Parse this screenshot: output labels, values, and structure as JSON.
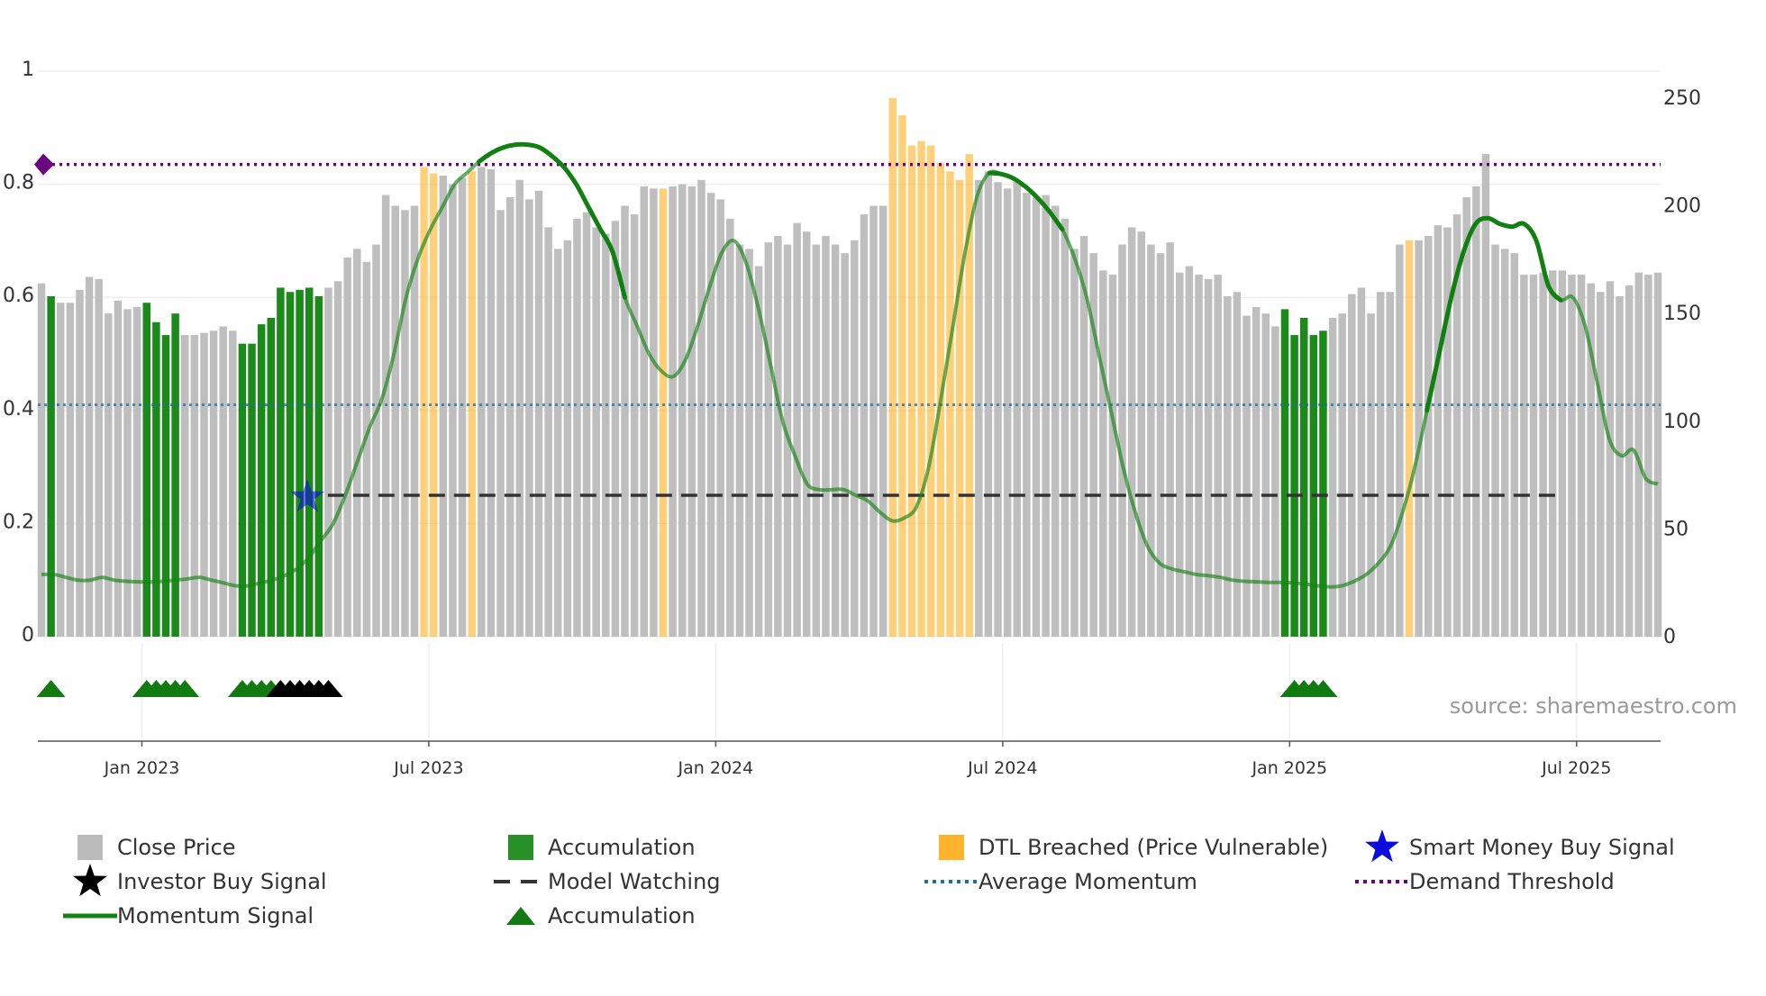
{
  "chart_data": {
    "type": "bar",
    "title": "",
    "source": "source: sharemaestro.com",
    "x_tick_labels": [
      "Jan 2023",
      "Jul 2023",
      "Jan 2024",
      "Jul 2024",
      "Jan 2025",
      "Jul 2025"
    ],
    "left_axis": {
      "ylim": [
        0,
        1
      ],
      "ticks": [
        0,
        0.2,
        0.4,
        0.6,
        0.8,
        1
      ],
      "tick_labels": [
        "0",
        "0.2",
        "0.4",
        "0.6",
        "0.8",
        "1"
      ]
    },
    "right_axis": {
      "ylim": [
        0,
        262.5
      ],
      "ticks": [
        0,
        50,
        100,
        150,
        200,
        250
      ],
      "tick_labels": [
        "0",
        "50",
        "100",
        "150",
        "200",
        "250"
      ]
    },
    "price": [
      164,
      158,
      155,
      155,
      161,
      167,
      166,
      150,
      156,
      152,
      153,
      155,
      146,
      140,
      150,
      140,
      140,
      141,
      142,
      144,
      142,
      136,
      136,
      145,
      148,
      162,
      160,
      161,
      162,
      158,
      162,
      165,
      176,
      180,
      174,
      182,
      205,
      200,
      198,
      200,
      218,
      215,
      214,
      210,
      213,
      216,
      218,
      217,
      198,
      204,
      212,
      203,
      207,
      190,
      180,
      184,
      194,
      197,
      190,
      187,
      193,
      200,
      196,
      209,
      208,
      208,
      209,
      210,
      209,
      212,
      206,
      203,
      194,
      182,
      180,
      172,
      183,
      186,
      182,
      192,
      188,
      182,
      186,
      182,
      178,
      184,
      196,
      200,
      200,
      250,
      242,
      228,
      230,
      228,
      220,
      216,
      212,
      224,
      212,
      216,
      211,
      208,
      211,
      206,
      204,
      205,
      200,
      194,
      180,
      186,
      178,
      170,
      168,
      182,
      190,
      188,
      182,
      178,
      183,
      169,
      172,
      168,
      166,
      168,
      158,
      160,
      149,
      153,
      150,
      144,
      152,
      140,
      148,
      140,
      142,
      148,
      150,
      159,
      162,
      150,
      160,
      160,
      182,
      184,
      184,
      186,
      191,
      190,
      196,
      204,
      209,
      224,
      182,
      180,
      178,
      168,
      168,
      169,
      170,
      170,
      168,
      168,
      164,
      160,
      165,
      158,
      163,
      169,
      168,
      169
    ],
    "series": [
      {
        "name": "Close Price",
        "color": "#bbbbbb",
        "legend_marker": "square"
      },
      {
        "name": "Investor Buy Signal",
        "color": "#000000",
        "legend_marker": "star"
      },
      {
        "name": "Momentum Signal",
        "color": "#168216",
        "legend_marker": "line"
      },
      {
        "name": "Accumulation",
        "color": "#1b8a1b",
        "legend_marker": "square",
        "bar_indices": [
          1,
          11,
          12,
          13,
          14,
          21,
          22,
          23,
          24,
          25,
          26,
          27,
          28,
          29,
          130,
          131,
          132,
          133,
          134
        ]
      },
      {
        "name": "Model Watching",
        "color": "#333333",
        "legend_marker": "dash",
        "value": 0.25,
        "x_range": [
          29,
          159
        ]
      },
      {
        "name": "Accumulation",
        "color": "#117a11",
        "legend_marker": "triangle",
        "indices": [
          1,
          11,
          12,
          13,
          14,
          15,
          21,
          22,
          23,
          24,
          131,
          132,
          133,
          134
        ]
      },
      {
        "name": "DTL Breached (Price Vulnerable)",
        "color": "#ffb020",
        "legend_marker": "square",
        "bar_indices": [
          40,
          41,
          45,
          65,
          89,
          90,
          91,
          92,
          93,
          94,
          95,
          96,
          97,
          143
        ]
      },
      {
        "name": "Average Momentum",
        "color": "#1f6fa0",
        "legend_marker": "dot",
        "value": 0.41
      },
      {
        "name": "Smart Money Buy Signal",
        "color": "#0b0bdd",
        "legend_marker": "star",
        "point": {
          "index": 28,
          "value": 0.25
        }
      },
      {
        "name": "Demand Threshold",
        "color": "#6b0080",
        "legend_marker": "dot",
        "value": 0.835
      },
      {
        "name": "Investor Buy Signal",
        "color": "#000000",
        "legend_marker": "triangle",
        "indices": [
          25,
          26,
          27,
          28,
          29,
          30
        ]
      }
    ],
    "momentum": [
      0.11,
      0.11,
      0.105,
      0.1,
      0.1,
      0.105,
      0.1,
      0.098,
      0.097,
      0.097,
      0.098,
      0.1,
      0.102,
      0.105,
      0.1,
      0.095,
      0.09,
      0.09,
      0.095,
      0.1,
      0.108,
      0.12,
      0.14,
      0.17,
      0.2,
      0.25,
      0.31,
      0.37,
      0.42,
      0.5,
      0.6,
      0.67,
      0.72,
      0.76,
      0.8,
      0.82,
      0.84,
      0.855,
      0.865,
      0.87,
      0.87,
      0.865,
      0.85,
      0.83,
      0.8,
      0.76,
      0.72,
      0.68,
      0.6,
      0.55,
      0.5,
      0.47,
      0.46,
      0.49,
      0.55,
      0.62,
      0.68,
      0.7,
      0.66,
      0.58,
      0.48,
      0.38,
      0.32,
      0.27,
      0.26,
      0.26,
      0.26,
      0.25,
      0.24,
      0.22,
      0.205,
      0.21,
      0.23,
      0.3,
      0.42,
      0.55,
      0.68,
      0.78,
      0.82,
      0.818,
      0.81,
      0.795,
      0.775,
      0.75,
      0.72,
      0.67,
      0.6,
      0.5,
      0.4,
      0.3,
      0.22,
      0.16,
      0.13,
      0.12,
      0.115,
      0.11,
      0.108,
      0.105,
      0.1,
      0.098,
      0.097,
      0.096,
      0.096,
      0.095,
      0.093,
      0.09,
      0.088,
      0.09,
      0.098,
      0.11,
      0.13,
      0.16,
      0.22,
      0.3,
      0.4,
      0.5,
      0.6,
      0.68,
      0.73,
      0.74,
      0.73,
      0.725,
      0.73,
      0.7,
      0.62,
      0.595,
      0.6,
      0.55,
      0.45,
      0.35,
      0.32,
      0.33,
      0.28,
      0.27
    ],
    "momentum_emphasis": [
      [
        36,
        48
      ],
      [
        78,
        84
      ],
      [
        114,
        125
      ]
    ]
  },
  "legend": [
    {
      "label": "Close Price"
    },
    {
      "label": "Accumulation"
    },
    {
      "label": "DTL Breached (Price Vulnerable)"
    },
    {
      "label": "Smart Money Buy Signal"
    },
    {
      "label": "Investor Buy Signal"
    },
    {
      "label": "Model Watching"
    },
    {
      "label": "Average Momentum"
    },
    {
      "label": "Demand Threshold"
    },
    {
      "label": "Momentum Signal"
    },
    {
      "label": "Accumulation"
    }
  ]
}
